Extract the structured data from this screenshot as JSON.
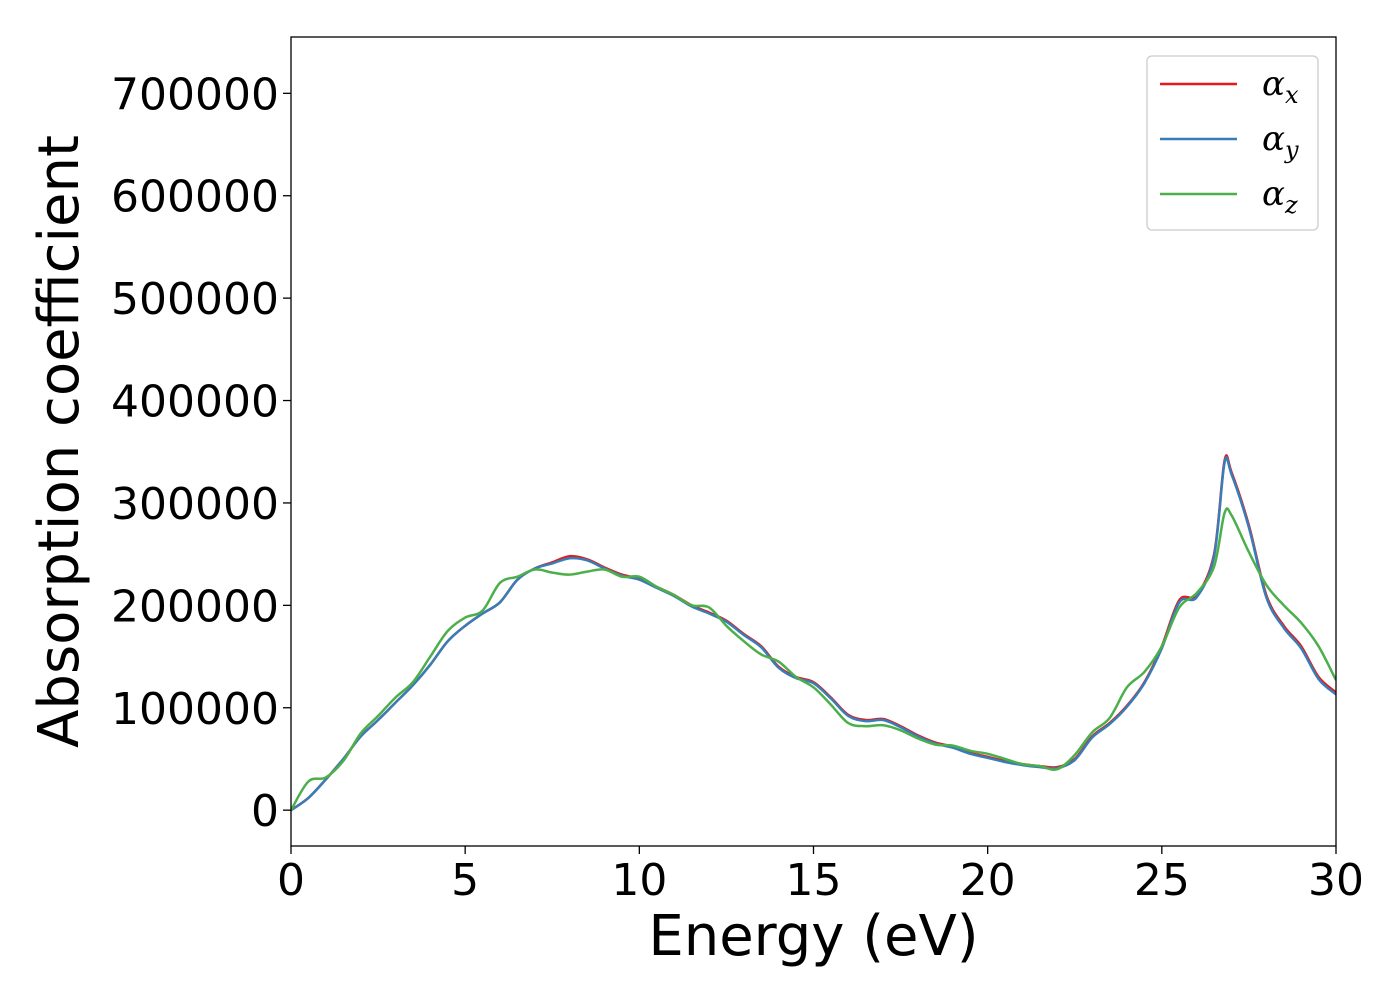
{
  "chart_data": {
    "type": "line",
    "title": "",
    "xlabel": "Energy (eV)",
    "ylabel": "Absorption coefficient",
    "xlim": [
      0,
      30
    ],
    "ylim": [
      -35000,
      755000
    ],
    "xticks": [
      0,
      5,
      10,
      15,
      20,
      25,
      30
    ],
    "yticks": [
      0,
      100000,
      200000,
      300000,
      400000,
      500000,
      600000,
      700000
    ],
    "grid": false,
    "legend_position": "top-right",
    "series": [
      {
        "name": "α",
        "subscript": "x",
        "color": "#e41a1c",
        "x": [
          0,
          0.5,
          1,
          1.5,
          2,
          2.5,
          3,
          3.5,
          4,
          4.5,
          5,
          5.5,
          6,
          6.5,
          7,
          7.5,
          8,
          8.5,
          9,
          9.5,
          10,
          10.5,
          11,
          11.5,
          12,
          12.5,
          13,
          13.5,
          14,
          14.5,
          15,
          15.5,
          16,
          16.5,
          17,
          17.5,
          18,
          18.5,
          19,
          19.5,
          20,
          20.5,
          21,
          21.5,
          22,
          22.5,
          23,
          23.5,
          24,
          24.5,
          25,
          25.5,
          26,
          26.5,
          26.8,
          27,
          27.5,
          28,
          28.5,
          29,
          29.5,
          30
        ],
        "y": [
          0,
          12000,
          30000,
          50000,
          72000,
          88000,
          105000,
          122000,
          142000,
          165000,
          180000,
          192000,
          203000,
          225000,
          236000,
          242000,
          248000,
          245000,
          237000,
          230000,
          226000,
          218000,
          210000,
          200000,
          193000,
          185000,
          172000,
          160000,
          140000,
          130000,
          125000,
          110000,
          93000,
          88000,
          89000,
          82000,
          73000,
          66000,
          62000,
          56000,
          52000,
          48000,
          45000,
          43000,
          42000,
          50000,
          72000,
          85000,
          102000,
          125000,
          160000,
          205000,
          210000,
          250000,
          341000,
          330000,
          278000,
          210000,
          180000,
          160000,
          130000,
          115000
        ]
      },
      {
        "name": "α",
        "subscript": "y",
        "color": "#377eb8",
        "x": [
          0,
          0.5,
          1,
          1.5,
          2,
          2.5,
          3,
          3.5,
          4,
          4.5,
          5,
          5.5,
          6,
          6.5,
          7,
          7.5,
          8,
          8.5,
          9,
          9.5,
          10,
          10.5,
          11,
          11.5,
          12,
          12.5,
          13,
          13.5,
          14,
          14.5,
          15,
          15.5,
          16,
          16.5,
          17,
          17.5,
          18,
          18.5,
          19,
          19.5,
          20,
          20.5,
          21,
          21.5,
          22,
          22.5,
          23,
          23.5,
          24,
          24.5,
          25,
          25.5,
          26,
          26.5,
          26.8,
          27,
          27.5,
          28,
          28.5,
          29,
          29.5,
          30
        ],
        "y": [
          0,
          12000,
          30000,
          50000,
          72000,
          88000,
          105000,
          122000,
          142000,
          165000,
          180000,
          192000,
          203000,
          225000,
          236000,
          241000,
          246000,
          244000,
          236000,
          229000,
          225000,
          217000,
          209000,
          199000,
          192000,
          184000,
          171000,
          159000,
          139000,
          129000,
          124000,
          109000,
          92000,
          87000,
          88000,
          81000,
          72000,
          65000,
          61000,
          55000,
          51000,
          47000,
          44000,
          42000,
          41000,
          49000,
          71000,
          84000,
          101000,
          124000,
          158000,
          203000,
          208000,
          248000,
          339000,
          328000,
          276000,
          208000,
          178000,
          158000,
          128000,
          113000
        ]
      },
      {
        "name": "α",
        "subscript": "z",
        "color": "#4daf4a",
        "x": [
          0,
          0.5,
          1,
          1.5,
          2,
          2.5,
          3,
          3.5,
          4,
          4.5,
          5,
          5.5,
          6,
          6.5,
          7,
          7.5,
          8,
          8.5,
          9,
          9.5,
          10,
          10.5,
          11,
          11.5,
          12,
          12.5,
          13,
          13.5,
          14,
          14.5,
          15,
          15.5,
          16,
          16.5,
          17,
          17.5,
          18,
          18.5,
          19,
          19.5,
          20,
          20.5,
          21,
          21.5,
          22,
          22.5,
          23,
          23.5,
          24,
          24.5,
          25,
          25.5,
          26,
          26.5,
          26.8,
          27,
          27.5,
          28,
          28.5,
          29,
          29.5,
          30
        ],
        "y": [
          0,
          28000,
          32000,
          48000,
          75000,
          92000,
          110000,
          125000,
          150000,
          175000,
          188000,
          195000,
          222000,
          228000,
          235000,
          232000,
          230000,
          233000,
          235000,
          228000,
          228000,
          218000,
          210000,
          200000,
          198000,
          180000,
          165000,
          152000,
          145000,
          130000,
          120000,
          103000,
          85000,
          82000,
          83000,
          78000,
          70000,
          64000,
          63000,
          58000,
          55000,
          50000,
          45000,
          43000,
          40000,
          54000,
          76000,
          90000,
          120000,
          135000,
          160000,
          198000,
          212000,
          238000,
          290000,
          288000,
          252000,
          220000,
          200000,
          183000,
          160000,
          127000
        ]
      }
    ]
  }
}
